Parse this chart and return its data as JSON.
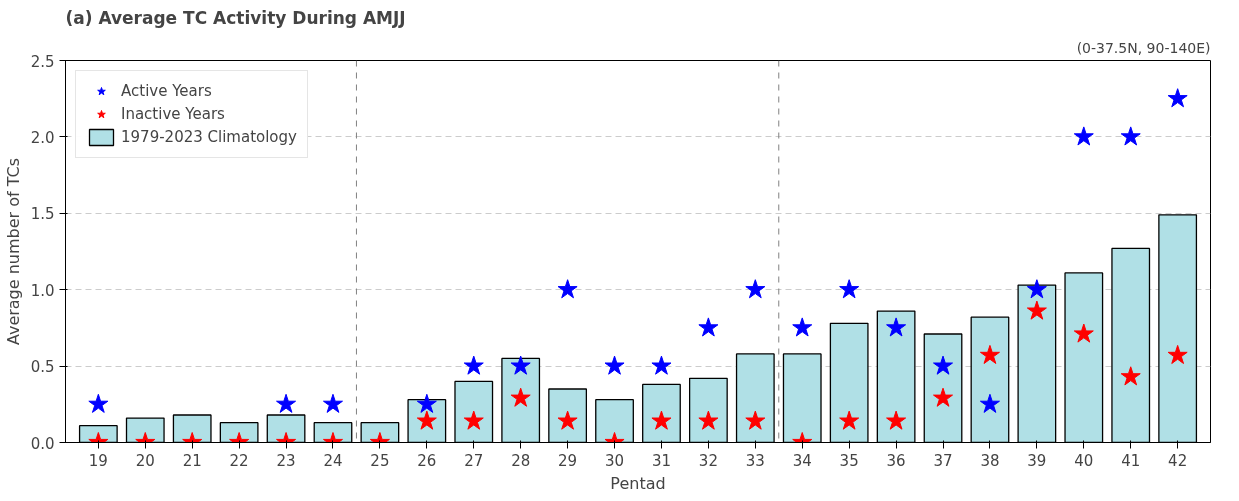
{
  "chart_data": {
    "type": "bar",
    "title": "(a) Average TC Activity During AMJJ",
    "subtitle": "(0-37.5N, 90-140E)",
    "xlabel": "Pentad",
    "ylabel": "Average number of TCs",
    "categories": [
      "19",
      "20",
      "21",
      "22",
      "23",
      "24",
      "25",
      "26",
      "27",
      "28",
      "29",
      "30",
      "31",
      "32",
      "33",
      "34",
      "35",
      "36",
      "37",
      "38",
      "39",
      "40",
      "41",
      "42"
    ],
    "series": [
      {
        "name": "Active Years",
        "type": "scatter",
        "marker": "star",
        "color": "#0000ff",
        "values": [
          0.25,
          null,
          null,
          null,
          0.25,
          0.25,
          null,
          0.25,
          0.5,
          0.5,
          1.0,
          0.5,
          0.5,
          0.75,
          1.0,
          0.75,
          1.0,
          0.75,
          0.5,
          0.25,
          1.0,
          2.0,
          2.0,
          2.25
        ]
      },
      {
        "name": "Inactive Years",
        "type": "scatter",
        "marker": "star",
        "color": "#ff0000",
        "values": [
          0,
          0,
          0,
          0,
          0,
          0,
          0,
          0.14,
          0.14,
          0.29,
          0.14,
          0,
          0.14,
          0.14,
          0.14,
          0,
          0.14,
          0.14,
          0.29,
          0.57,
          0.86,
          0.71,
          0.43,
          0.57
        ]
      },
      {
        "name": "1979-2023 Climatology",
        "color": "#b0e0e6",
        "values": [
          0.11,
          0.16,
          0.18,
          0.13,
          0.18,
          0.13,
          0.13,
          0.28,
          0.4,
          0.55,
          0.35,
          0.28,
          0.38,
          0.42,
          0.58,
          0.58,
          0.78,
          0.86,
          0.71,
          0.82,
          1.03,
          1.11,
          1.27,
          1.49
        ]
      }
    ],
    "ylim": [
      0,
      2.5
    ],
    "yticks": [
      {
        "value": 0,
        "label": "0.0"
      },
      0.5,
      {
        "value": 1,
        "label": "1.0"
      },
      1.5,
      {
        "value": 2,
        "label": "2.0"
      },
      2.5
    ],
    "grid": "y",
    "legend": "top left"
  }
}
